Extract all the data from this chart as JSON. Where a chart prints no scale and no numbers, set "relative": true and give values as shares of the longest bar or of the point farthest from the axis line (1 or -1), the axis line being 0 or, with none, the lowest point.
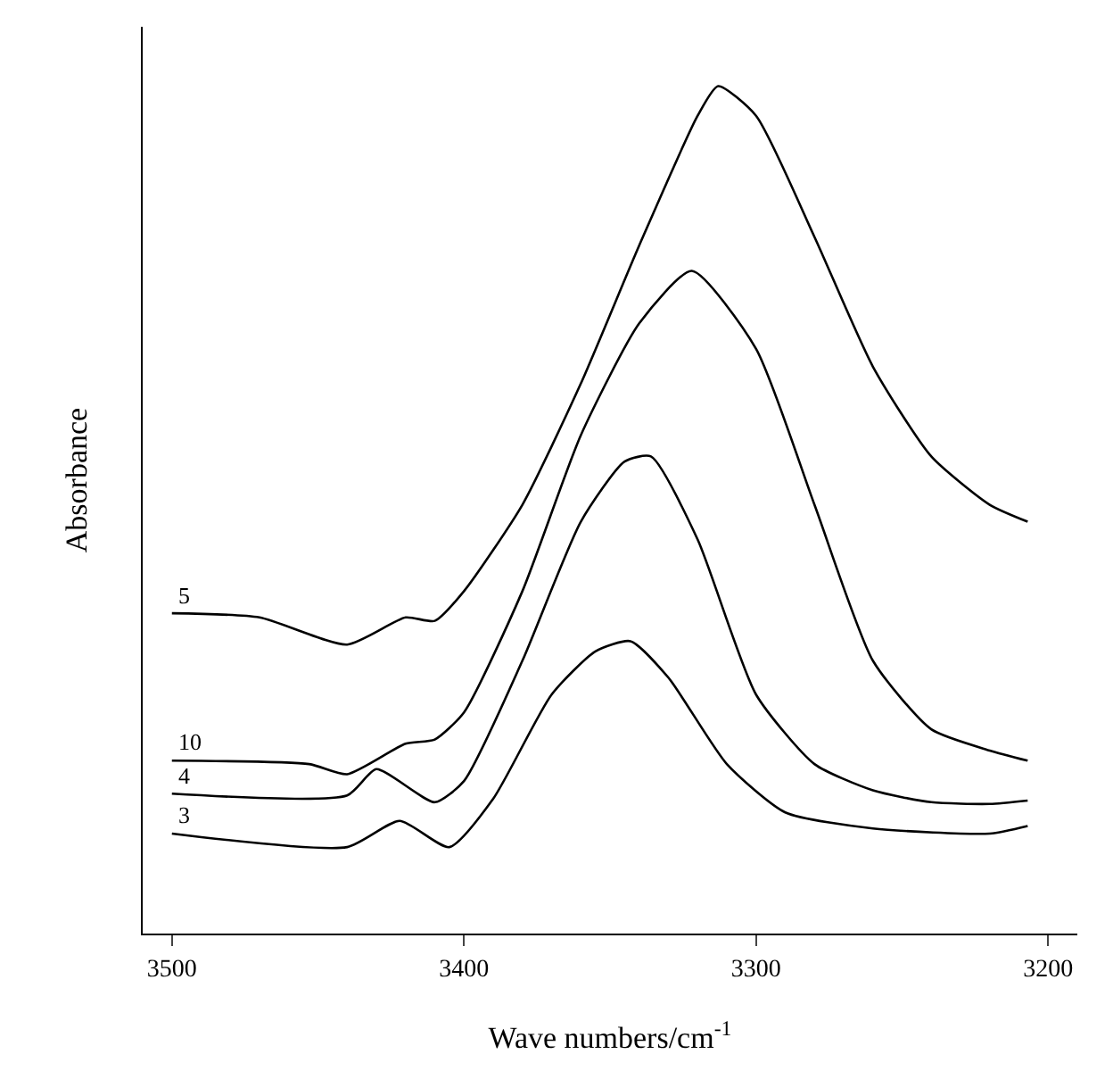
{
  "chart_data": {
    "type": "line",
    "relative": true,
    "xlabel": "Wave numbers/cm$^{-1}$",
    "ylabel": "Absorbance",
    "xlim": [
      3510,
      3190
    ],
    "xticks": [
      3500,
      3400,
      3300,
      3200
    ],
    "legend": false,
    "marker": "none",
    "line_style": "solid",
    "series": [
      {
        "name": "5",
        "color": "#000000",
        "x": [
          3500,
          3470,
          3440,
          3420,
          3410,
          3400,
          3380,
          3360,
          3340,
          3320,
          3313,
          3300,
          3280,
          3260,
          3240,
          3220,
          3207
        ],
        "values": [
          0.378,
          0.373,
          0.341,
          0.373,
          0.369,
          0.404,
          0.506,
          0.649,
          0.812,
          0.965,
          1.0,
          0.965,
          0.822,
          0.669,
          0.563,
          0.506,
          0.486
        ]
      },
      {
        "name": "10",
        "color": "#000000",
        "x": [
          3500,
          3453,
          3440,
          3420,
          3410,
          3400,
          3380,
          3360,
          3340,
          3322,
          3300,
          3280,
          3260,
          3240,
          3220,
          3207
        ],
        "values": [
          0.204,
          0.2,
          0.188,
          0.224,
          0.229,
          0.261,
          0.404,
          0.588,
          0.72,
          0.782,
          0.69,
          0.506,
          0.322,
          0.241,
          0.216,
          0.204
        ]
      },
      {
        "name": "4",
        "color": "#000000",
        "x": [
          3500,
          3440,
          3430,
          3410,
          3400,
          3380,
          3360,
          3345,
          3336,
          3320,
          3300,
          3280,
          3260,
          3240,
          3220,
          3207
        ],
        "values": [
          0.165,
          0.163,
          0.194,
          0.155,
          0.18,
          0.322,
          0.486,
          0.557,
          0.563,
          0.465,
          0.282,
          0.2,
          0.169,
          0.155,
          0.153,
          0.157
        ]
      },
      {
        "name": "3",
        "color": "#000000",
        "x": [
          3500,
          3440,
          3422,
          3405,
          3390,
          3370,
          3355,
          3343,
          3330,
          3310,
          3290,
          3260,
          3220,
          3207
        ],
        "values": [
          0.118,
          0.102,
          0.133,
          0.102,
          0.159,
          0.282,
          0.333,
          0.345,
          0.302,
          0.2,
          0.143,
          0.124,
          0.118,
          0.127
        ]
      }
    ]
  }
}
